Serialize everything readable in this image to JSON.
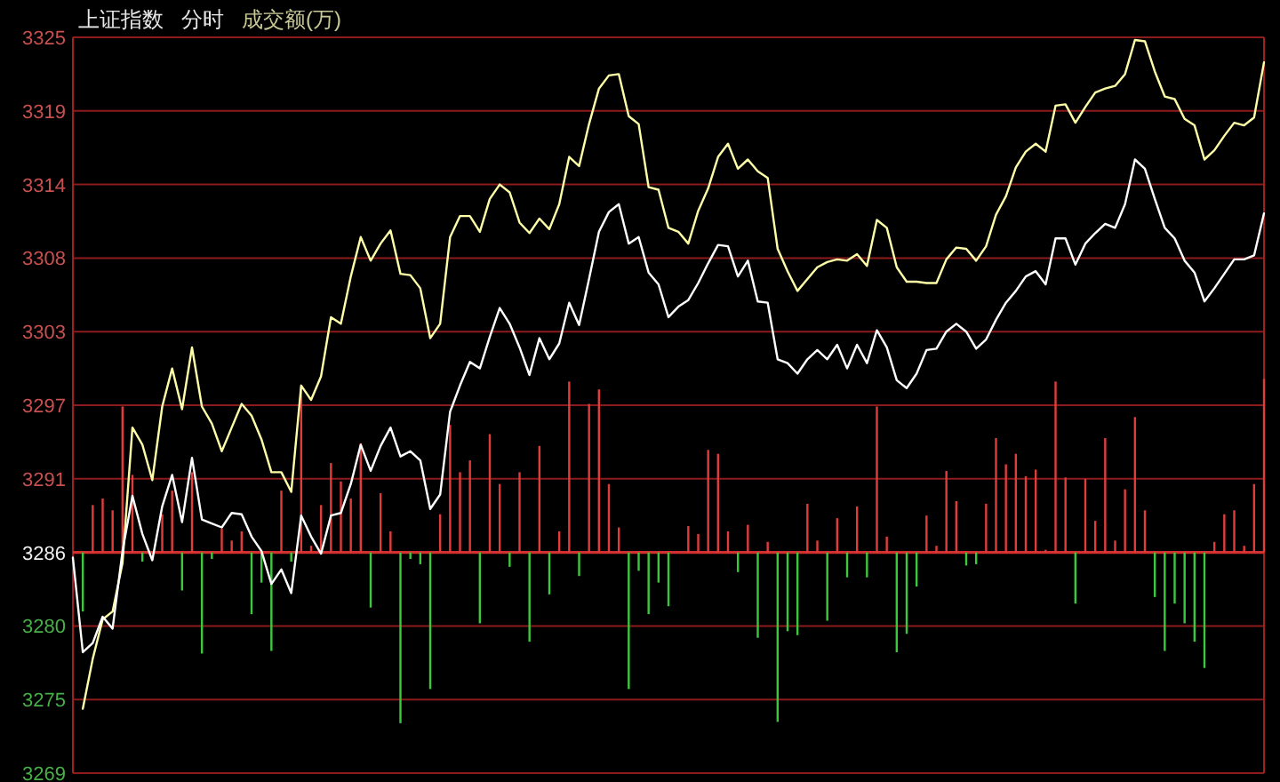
{
  "chart_data": {
    "type": "line",
    "title": "上证指数",
    "subtitle": "分时",
    "annotations": [
      "成交额(万)"
    ],
    "categories": [
      null,
      null,
      null,
      null,
      null,
      null,
      null,
      null,
      null,
      null,
      null,
      null,
      null,
      null,
      null,
      null,
      null,
      null,
      null,
      null,
      null,
      null,
      null,
      null,
      null,
      null,
      null,
      null,
      null,
      null,
      null,
      null,
      null,
      null,
      null,
      null,
      null,
      null,
      null,
      null,
      null,
      null,
      null,
      null,
      null,
      null,
      null,
      null,
      null,
      null,
      null,
      null,
      null,
      null,
      null,
      null,
      null,
      null,
      null,
      null,
      null,
      null,
      null,
      null,
      null,
      null,
      null,
      null,
      null,
      null,
      null,
      null,
      null,
      null,
      null,
      null,
      null,
      null,
      null,
      null,
      null,
      null,
      null,
      null,
      null,
      null,
      null,
      null,
      null,
      null,
      null,
      null,
      null,
      null,
      null,
      null,
      null,
      null,
      null,
      null,
      null,
      null,
      null,
      null,
      null,
      null,
      null,
      null,
      null,
      null,
      null,
      null,
      null,
      null,
      null,
      null,
      null,
      null,
      null,
      null,
      null
    ],
    "ylim": [
      3269,
      3325
    ],
    "yticks": [
      3269,
      {
        "value": 3274.6,
        "label": "3275"
      },
      {
        "value": 3280.2,
        "label": "3280"
      },
      {
        "value": 3285.8,
        "label": "3286"
      },
      {
        "value": 3291.4,
        "label": "3291"
      },
      3297,
      {
        "value": 3302.6,
        "label": "3303"
      },
      {
        "value": 3308.2,
        "label": "3308"
      },
      {
        "value": 3313.8,
        "label": "3314"
      },
      {
        "value": 3319.4,
        "label": "3319"
      },
      3325
    ],
    "grid": "y",
    "ref_lines": [
      {
        "axis": "y",
        "value": 3285.8,
        "color": "#d03030"
      }
    ],
    "series": [
      {
        "type": "bar",
        "base": [
          null,
          3285.8,
          3285.8,
          3285.8,
          3285.8,
          3285.8,
          3285.8,
          3285.8,
          null,
          3285.8,
          3285.8,
          3285.8,
          3285.8,
          3285.8,
          3285.8,
          3285.8,
          3285.8,
          3285.8,
          3285.8,
          3285.8,
          3285.8,
          3285.8,
          3285.8,
          3285.8,
          3285.8,
          3285.8,
          3285.8,
          3285.8,
          3285.8,
          3285.8,
          3285.8,
          3285.8,
          3285.8,
          3285.8,
          3285.8,
          3285.8,
          3285.8,
          3285.8,
          3285.8,
          3285.8,
          3285.8,
          3285.8,
          3285.8,
          3285.8,
          3285.8,
          3285.8,
          3285.8,
          3285.8,
          3285.8,
          3285.8,
          3285.8,
          3285.8,
          3285.8,
          3285.8,
          3285.8,
          3285.8,
          3285.8,
          3285.8,
          3285.8,
          3285.8,
          3285.8,
          null,
          3285.8,
          3285.8,
          3285.8,
          3285.8,
          3285.8,
          3285.8,
          3285.8,
          3285.8,
          3285.8,
          3285.8,
          3285.8,
          3285.8,
          3285.8,
          3285.8,
          3285.8,
          3285.8,
          3285.8,
          3285.8,
          3285.8,
          3285.8,
          3285.8,
          3285.8,
          3285.8,
          3285.8,
          3285.8,
          3285.8,
          3285.8,
          3285.8,
          3285.8,
          3285.8,
          3285.8,
          3285.8,
          3285.8,
          3285.8,
          3285.8,
          3285.8,
          3285.8,
          3285.8,
          3285.8,
          3285.8,
          3285.8,
          3285.8,
          3285.8,
          3285.8,
          3285.8,
          3285.8,
          3285.8,
          3285.8,
          3285.8,
          3285.8,
          3285.8,
          3285.8,
          3285.8,
          3285.8,
          3285.8,
          3285.8,
          3285.8,
          3285.8,
          3285.8
        ],
        "values": [
          null,
          -4.5,
          3.6,
          4.1,
          3.2,
          11.1,
          5.9,
          -0.7,
          null,
          2.9,
          4.7,
          -2.9,
          6.1,
          -7.7,
          -0.5,
          1.8,
          0.9,
          1.6,
          -4.7,
          -2.3,
          -7.5,
          4.7,
          -0.7,
          12.6,
          0.5,
          3.6,
          6.8,
          5.4,
          4.1,
          8.3,
          -4.2,
          4.5,
          1.6,
          -13.0,
          -0.5,
          -0.9,
          -10.4,
          2.9,
          9.7,
          6.1,
          7.0,
          -5.4,
          9.0,
          5.2,
          -1.1,
          6.1,
          -6.8,
          8.1,
          -3.2,
          1.6,
          13.0,
          -1.8,
          11.3,
          12.4,
          5.2,
          1.9,
          -10.4,
          -1.4,
          -4.7,
          -2.3,
          -4.1,
          null,
          2.0,
          1.4,
          7.8,
          7.5,
          1.6,
          -1.5,
          2.1,
          -6.5,
          0.8,
          -12.9,
          -6.0,
          -6.3,
          3.7,
          0.9,
          -5.2,
          2.6,
          -1.9,
          3.5,
          -1.9,
          11.1,
          1.2,
          -7.6,
          -6.2,
          -2.6,
          2.8,
          0.5,
          6.2,
          3.9,
          -1.0,
          -0.9,
          3.7,
          8.7,
          6.7,
          7.5,
          5.8,
          6.3,
          0.2,
          13.0,
          5.7,
          -3.9,
          5.6,
          2.4,
          8.7,
          0.9,
          4.8,
          10.3,
          3.2,
          -3.4,
          -7.5,
          -3.9,
          -5.4,
          -6.8,
          -8.8,
          0.8,
          2.9,
          3.2,
          0.5,
          5.2,
          13.2
        ],
        "colors": [
          null,
          "#3cc83c",
          "#e03c3c",
          "#e03c3c",
          "#e03c3c",
          "#e03c3c",
          "#e03c3c",
          "#3cc83c",
          null,
          "#e03c3c",
          "#e03c3c",
          "#3cc83c",
          "#e03c3c",
          "#3cc83c",
          "#3cc83c",
          "#e03c3c",
          "#e03c3c",
          "#e03c3c",
          "#3cc83c",
          "#3cc83c",
          "#3cc83c",
          "#e03c3c",
          "#3cc83c",
          "#e03c3c",
          "#e03c3c",
          "#e03c3c",
          "#e03c3c",
          "#e03c3c",
          "#e03c3c",
          "#e03c3c",
          "#3cc83c",
          "#e03c3c",
          "#e03c3c",
          "#3cc83c",
          "#3cc83c",
          "#3cc83c",
          "#3cc83c",
          "#e03c3c",
          "#e03c3c",
          "#e03c3c",
          "#e03c3c",
          "#3cc83c",
          "#e03c3c",
          "#e03c3c",
          "#3cc83c",
          "#e03c3c",
          "#3cc83c",
          "#e03c3c",
          "#3cc83c",
          "#e03c3c",
          "#e03c3c",
          "#3cc83c",
          "#e03c3c",
          "#e03c3c",
          "#e03c3c",
          "#e03c3c",
          "#3cc83c",
          "#3cc83c",
          "#3cc83c",
          "#3cc83c",
          "#3cc83c",
          null,
          "#e03c3c",
          "#e03c3c",
          "#e03c3c",
          "#e03c3c",
          "#e03c3c",
          "#3cc83c",
          "#e03c3c",
          "#3cc83c",
          "#e03c3c",
          "#3cc83c",
          "#3cc83c",
          "#3cc83c",
          "#e03c3c",
          "#e03c3c",
          "#3cc83c",
          "#e03c3c",
          "#3cc83c",
          "#e03c3c",
          "#3cc83c",
          "#e03c3c",
          "#e03c3c",
          "#3cc83c",
          "#3cc83c",
          "#3cc83c",
          "#e03c3c",
          "#e03c3c",
          "#e03c3c",
          "#e03c3c",
          "#3cc83c",
          "#3cc83c",
          "#e03c3c",
          "#e03c3c",
          "#e03c3c",
          "#e03c3c",
          "#e03c3c",
          "#e03c3c",
          "#e03c3c",
          "#e03c3c",
          "#e03c3c",
          "#3cc83c",
          "#e03c3c",
          "#e03c3c",
          "#e03c3c",
          "#e03c3c",
          "#e03c3c",
          "#e03c3c",
          "#e03c3c",
          "#3cc83c",
          "#3cc83c",
          "#3cc83c",
          "#3cc83c",
          "#3cc83c",
          "#3cc83c",
          "#e03c3c",
          "#e03c3c",
          "#e03c3c",
          "#e03c3c",
          "#e03c3c",
          "#e03c3c"
        ]
      },
      {
        "color": "#ffffa8",
        "values": [
          null,
          3273.9,
          3277.7,
          3280.7,
          3281.3,
          3285.0,
          3295.3,
          3294.0,
          3291.3,
          3296.9,
          3299.8,
          3296.7,
          3301.4,
          3296.9,
          3295.6,
          3293.5,
          3295.3,
          3297.1,
          3296.2,
          3294.4,
          3291.9,
          3291.9,
          3290.4,
          3298.5,
          3297.4,
          3299.2,
          3303.7,
          3303.2,
          3306.8,
          3309.8,
          3308.0,
          3309.3,
          3310.3,
          3307.0,
          3306.9,
          3305.9,
          3302.1,
          3303.2,
          3309.8,
          3311.4,
          3311.4,
          3310.2,
          3312.7,
          3313.8,
          3313.2,
          3310.9,
          3310.1,
          3311.2,
          3310.4,
          3312.3,
          3315.9,
          3315.2,
          3318.4,
          3321.1,
          3322.1,
          3322.2,
          3319.0,
          3318.4,
          3313.6,
          3313.4,
          3310.5,
          3310.2,
          3309.3,
          3311.8,
          3313.5,
          3315.9,
          3316.9,
          3315.0,
          3315.7,
          3314.8,
          3314.3,
          3308.9,
          3307.2,
          3305.7,
          3306.6,
          3307.5,
          3307.9,
          3308.1,
          3308.0,
          3308.5,
          3307.6,
          3311.1,
          3310.5,
          3307.5,
          3306.4,
          3306.4,
          3306.3,
          3306.3,
          3308.1,
          3309.0,
          3308.9,
          3308.0,
          3309.1,
          3311.5,
          3312.9,
          3315.1,
          3316.3,
          3316.9,
          3316.3,
          3319.8,
          3319.9,
          3318.5,
          3319.7,
          3320.8,
          3321.1,
          3321.3,
          3322.2,
          3324.8,
          3324.7,
          3322.4,
          3320.5,
          3320.3,
          3318.8,
          3318.3,
          3315.7,
          3316.4,
          3317.5,
          3318.5,
          3318.3,
          3318.9,
          3323.1
        ]
      },
      {
        "color": "#ffffff",
        "values": [
          3285.4,
          3278.2,
          3278.9,
          3280.9,
          3280.0,
          3285.9,
          3290.1,
          3287.2,
          3285.2,
          3289.3,
          3291.7,
          3288.1,
          3293.0,
          3288.3,
          3288.0,
          3287.7,
          3288.8,
          3288.7,
          3287.0,
          3285.9,
          3283.4,
          3284.5,
          3282.7,
          3288.6,
          3287.0,
          3285.7,
          3288.6,
          3288.8,
          3291.0,
          3294.0,
          3292.0,
          3293.9,
          3295.3,
          3293.1,
          3293.5,
          3292.8,
          3289.1,
          3290.2,
          3296.5,
          3298.5,
          3300.3,
          3299.8,
          3302.2,
          3304.4,
          3303.2,
          3301.4,
          3299.3,
          3302.1,
          3300.5,
          3301.7,
          3304.8,
          3303.1,
          3306.6,
          3310.2,
          3311.7,
          3312.3,
          3309.3,
          3309.8,
          3307.1,
          3306.2,
          3303.7,
          3304.5,
          3305.0,
          3306.3,
          3307.8,
          3309.2,
          3309.1,
          3306.8,
          3308.0,
          3304.9,
          3304.8,
          3300.5,
          3300.2,
          3299.4,
          3300.5,
          3301.2,
          3300.5,
          3301.6,
          3299.8,
          3301.6,
          3300.2,
          3302.7,
          3301.4,
          3298.9,
          3298.3,
          3299.4,
          3301.2,
          3301.3,
          3302.6,
          3303.2,
          3302.6,
          3301.3,
          3302.0,
          3303.5,
          3304.8,
          3305.7,
          3306.8,
          3307.2,
          3306.2,
          3309.7,
          3309.7,
          3307.7,
          3309.3,
          3310.1,
          3310.8,
          3310.5,
          3312.3,
          3315.7,
          3315.0,
          3312.7,
          3310.5,
          3309.7,
          3308.0,
          3307.1,
          3304.9,
          3305.9,
          3307.0,
          3308.1,
          3308.1,
          3308.4,
          3311.6
        ]
      }
    ]
  }
}
